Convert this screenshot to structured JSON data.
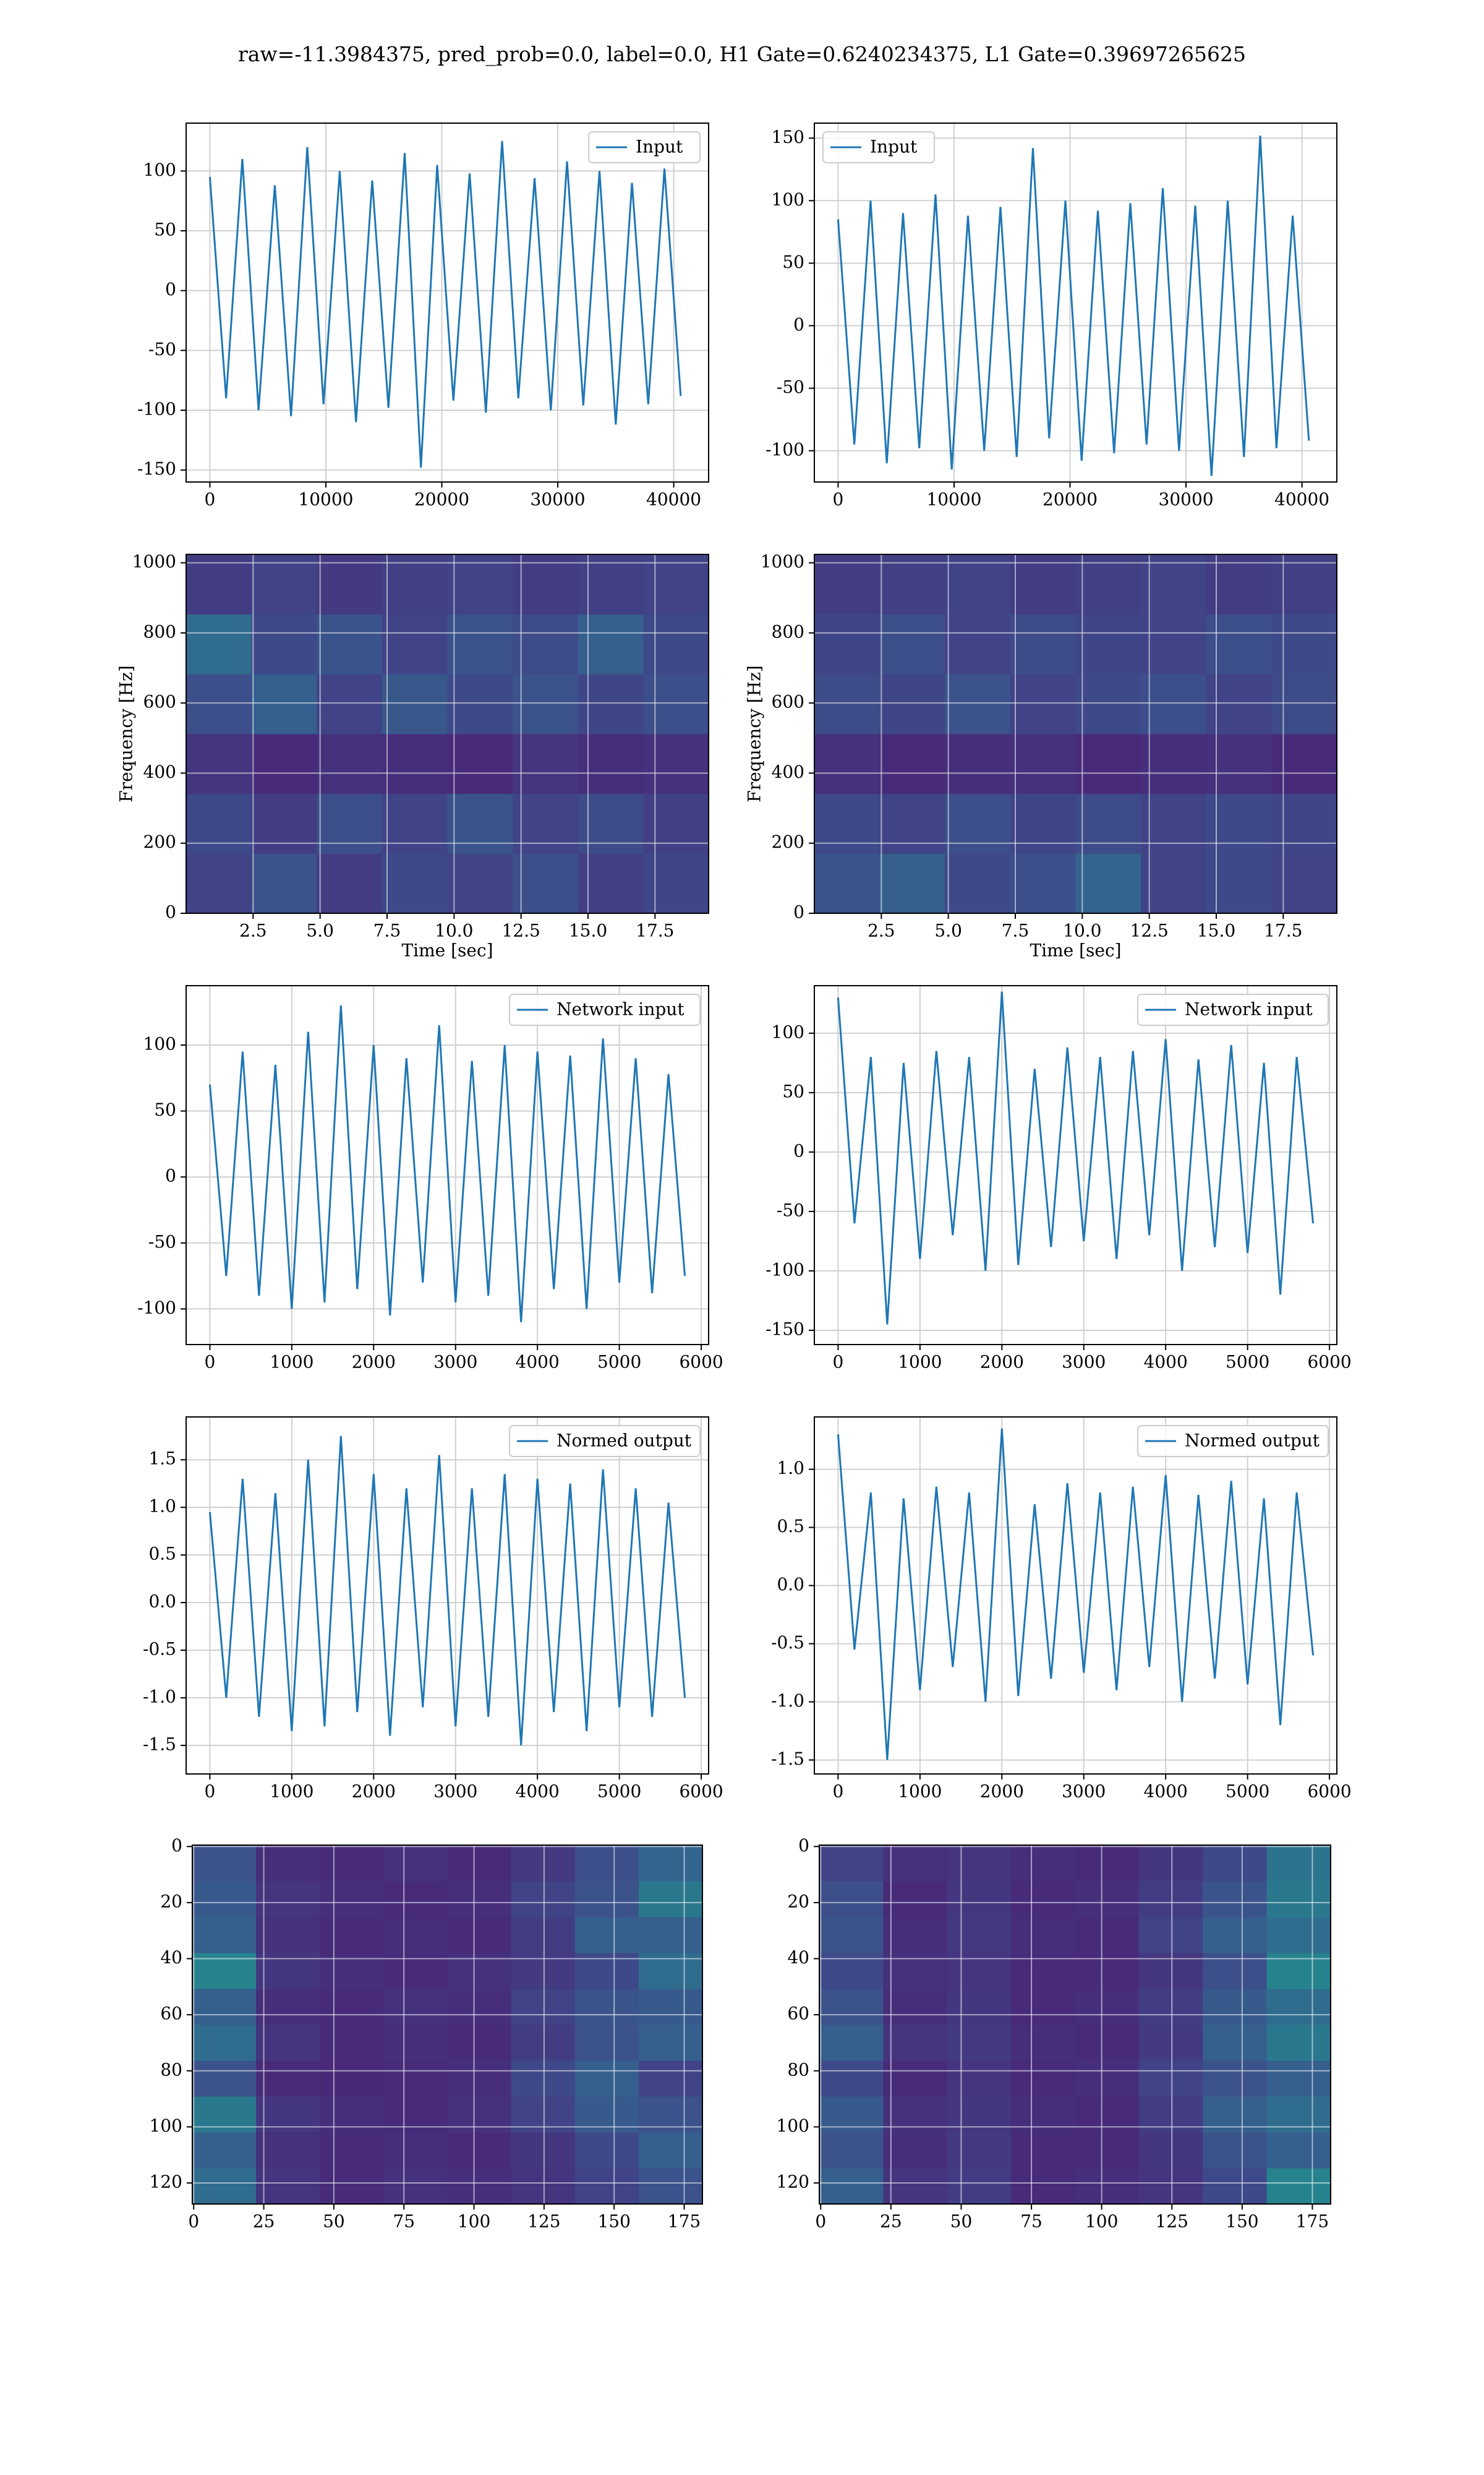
{
  "title": "raw=-11.3984375, pred_prob=0.0, label=0.0, H1 Gate=0.6240234375, L1 Gate=0.39697265625",
  "chart_data": [
    {
      "type": "line",
      "x": [
        0,
        1400,
        2800,
        4200,
        5600,
        7000,
        8400,
        9800,
        11200,
        12600,
        14000,
        15400,
        16800,
        18200,
        19600,
        21000,
        22400,
        23800,
        25200,
        26600,
        28000,
        29400,
        30800,
        32200,
        33600,
        35000,
        36400,
        37800,
        39200,
        40600
      ],
      "series": [
        {
          "name": "Input",
          "color": "#1f77b4",
          "values": [
            95,
            -90,
            110,
            -100,
            88,
            -105,
            120,
            -95,
            100,
            -110,
            92,
            -98,
            115,
            -148,
            105,
            -92,
            98,
            -102,
            125,
            -90,
            94,
            -100,
            108,
            -96,
            100,
            -112,
            90,
            -95,
            102,
            -88
          ]
        }
      ],
      "xlim": [
        -2048,
        43008
      ],
      "ylim": [
        -160,
        140
      ],
      "xticks": [
        0,
        10000,
        20000,
        30000,
        40000
      ],
      "yticks": [
        -150,
        -100,
        -50,
        0,
        50,
        100
      ],
      "grid": true,
      "legend": "upper right"
    },
    {
      "type": "line",
      "x": [
        0,
        1400,
        2800,
        4200,
        5600,
        7000,
        8400,
        9800,
        11200,
        12600,
        14000,
        15400,
        16800,
        18200,
        19600,
        21000,
        22400,
        23800,
        25200,
        26600,
        28000,
        29400,
        30800,
        32200,
        33600,
        35000,
        36400,
        37800,
        39200,
        40600
      ],
      "series": [
        {
          "name": "Input",
          "color": "#1f77b4",
          "values": [
            85,
            -95,
            100,
            -110,
            90,
            -98,
            105,
            -115,
            88,
            -100,
            95,
            -105,
            142,
            -90,
            100,
            -108,
            92,
            -102,
            98,
            -95,
            110,
            -100,
            96,
            -120,
            100,
            -105,
            152,
            -98,
            88,
            -92
          ]
        }
      ],
      "xlim": [
        -2048,
        43008
      ],
      "ylim": [
        -125,
        162
      ],
      "xticks": [
        0,
        10000,
        20000,
        30000,
        40000
      ],
      "yticks": [
        -100,
        -50,
        0,
        50,
        100,
        150
      ],
      "grid": true,
      "legend": "upper left"
    },
    {
      "type": "heatmap",
      "xlabel": "Time [sec]",
      "ylabel": "Frequency [Hz]",
      "xlim": [
        0,
        19.5
      ],
      "ylim": [
        0,
        1024
      ],
      "xticks": [
        2.5,
        {
          "value": 5,
          "label": "5.0"
        },
        7.5,
        {
          "value": 10,
          "label": "10.0"
        },
        12.5,
        {
          "value": 15,
          "label": "15.0"
        },
        17.5
      ],
      "yticks": [
        0,
        200,
        400,
        600,
        800,
        1000
      ],
      "colormap": "viridis",
      "grid": true,
      "z": [
        [
          0.2,
          0.25,
          0.18,
          0.22,
          0.2,
          0.24,
          0.19,
          0.21
        ],
        [
          0.22,
          0.18,
          0.24,
          0.2,
          0.26,
          0.2,
          0.23,
          0.19
        ],
        [
          0.15,
          0.12,
          0.14,
          0.13,
          0.12,
          0.15,
          0.13,
          0.14
        ],
        [
          0.24,
          0.3,
          0.2,
          0.27,
          0.22,
          0.25,
          0.21,
          0.24
        ],
        [
          0.35,
          0.22,
          0.26,
          0.2,
          0.25,
          0.23,
          0.3,
          0.22
        ],
        [
          0.18,
          0.2,
          0.17,
          0.19,
          0.2,
          0.18,
          0.19,
          0.2
        ]
      ]
    },
    {
      "type": "heatmap",
      "xlabel": "Time [sec]",
      "ylabel": "Frequency [Hz]",
      "xlim": [
        0,
        19.5
      ],
      "ylim": [
        0,
        1024
      ],
      "xticks": [
        2.5,
        {
          "value": 5,
          "label": "5.0"
        },
        7.5,
        {
          "value": 10,
          "label": "10.0"
        },
        12.5,
        {
          "value": 15,
          "label": "15.0"
        },
        17.5
      ],
      "yticks": [
        0,
        200,
        400,
        600,
        800,
        1000
      ],
      "colormap": "viridis",
      "grid": true,
      "z": [
        [
          0.26,
          0.3,
          0.22,
          0.24,
          0.32,
          0.2,
          0.22,
          0.2
        ],
        [
          0.22,
          0.2,
          0.24,
          0.21,
          0.23,
          0.2,
          0.22,
          0.21
        ],
        [
          0.14,
          0.12,
          0.13,
          0.14,
          0.12,
          0.13,
          0.14,
          0.12
        ],
        [
          0.23,
          0.21,
          0.25,
          0.2,
          0.22,
          0.24,
          0.2,
          0.23
        ],
        [
          0.21,
          0.24,
          0.2,
          0.23,
          0.21,
          0.2,
          0.24,
          0.22
        ],
        [
          0.18,
          0.19,
          0.2,
          0.18,
          0.19,
          0.2,
          0.18,
          0.19
        ]
      ]
    },
    {
      "type": "line",
      "x": [
        0,
        200,
        400,
        600,
        800,
        1000,
        1200,
        1400,
        1600,
        1800,
        2000,
        2200,
        2400,
        2600,
        2800,
        3000,
        3200,
        3400,
        3600,
        3800,
        4000,
        4200,
        4400,
        4600,
        4800,
        5000,
        5200,
        5400,
        5600,
        5800
      ],
      "series": [
        {
          "name": "Network input",
          "color": "#1f77b4",
          "values": [
            70,
            -75,
            95,
            -90,
            85,
            -100,
            110,
            -95,
            130,
            -85,
            100,
            -105,
            90,
            -80,
            115,
            -95,
            88,
            -90,
            100,
            -110,
            95,
            -85,
            92,
            -100,
            105,
            -80,
            90,
            -88,
            78,
            -75
          ]
        }
      ],
      "xlim": [
        -290,
        6090
      ],
      "ylim": [
        -127,
        145
      ],
      "xticks": [
        0,
        1000,
        2000,
        3000,
        4000,
        5000,
        6000
      ],
      "yticks": [
        -100,
        -50,
        0,
        50,
        100
      ],
      "grid": true,
      "legend": "upper right"
    },
    {
      "type": "line",
      "x": [
        0,
        200,
        400,
        600,
        800,
        1000,
        1200,
        1400,
        1600,
        1800,
        2000,
        2200,
        2400,
        2600,
        2800,
        3000,
        3200,
        3400,
        3600,
        3800,
        4000,
        4200,
        4400,
        4600,
        4800,
        5000,
        5200,
        5400,
        5600,
        5800
      ],
      "series": [
        {
          "name": "Network input",
          "color": "#1f77b4",
          "values": [
            130,
            -60,
            80,
            -145,
            75,
            -90,
            85,
            -70,
            80,
            -100,
            135,
            -95,
            70,
            -80,
            88,
            -75,
            80,
            -90,
            85,
            -70,
            95,
            -100,
            78,
            -80,
            90,
            -85,
            75,
            -120,
            80,
            -60
          ]
        }
      ],
      "xlim": [
        -290,
        6090
      ],
      "ylim": [
        -162,
        140
      ],
      "xticks": [
        0,
        1000,
        2000,
        3000,
        4000,
        5000,
        6000
      ],
      "yticks": [
        -150,
        -100,
        -50,
        0,
        50,
        100
      ],
      "grid": true,
      "legend": "upper right"
    },
    {
      "type": "line",
      "x": [
        0,
        200,
        400,
        600,
        800,
        1000,
        1200,
        1400,
        1600,
        1800,
        2000,
        2200,
        2400,
        2600,
        2800,
        3000,
        3200,
        3400,
        3600,
        3800,
        4000,
        4200,
        4400,
        4600,
        4800,
        5000,
        5200,
        5400,
        5600,
        5800
      ],
      "series": [
        {
          "name": "Normed output",
          "color": "#1f77b4",
          "values": [
            0.95,
            -1.0,
            1.3,
            -1.2,
            1.15,
            -1.35,
            1.5,
            -1.3,
            1.75,
            -1.15,
            1.35,
            -1.4,
            1.2,
            -1.1,
            1.55,
            -1.3,
            1.2,
            -1.2,
            1.35,
            -1.5,
            1.3,
            -1.15,
            1.25,
            -1.35,
            1.4,
            -1.1,
            1.2,
            -1.2,
            1.05,
            -1.0
          ]
        }
      ],
      "xlim": [
        -290,
        6090
      ],
      "ylim": [
        -1.8,
        1.95
      ],
      "xticks": [
        0,
        1000,
        2000,
        3000,
        4000,
        5000,
        6000
      ],
      "yticks": [
        -1.5,
        {
          "value": -1,
          "label": "-1.0"
        },
        -0.5,
        {
          "value": 0,
          "label": "0.0"
        },
        0.5,
        {
          "value": 1,
          "label": "1.0"
        },
        1.5
      ],
      "grid": true,
      "legend": "upper right"
    },
    {
      "type": "line",
      "x": [
        0,
        200,
        400,
        600,
        800,
        1000,
        1200,
        1400,
        1600,
        1800,
        2000,
        2200,
        2400,
        2600,
        2800,
        3000,
        3200,
        3400,
        3600,
        3800,
        4000,
        4200,
        4400,
        4600,
        4800,
        5000,
        5200,
        5400,
        5600,
        5800
      ],
      "series": [
        {
          "name": "Normed output",
          "color": "#1f77b4",
          "values": [
            1.3,
            -0.55,
            0.8,
            -1.5,
            0.75,
            -0.9,
            0.85,
            -0.7,
            0.8,
            -1.0,
            1.35,
            -0.95,
            0.7,
            -0.8,
            0.88,
            -0.75,
            0.8,
            -0.9,
            0.85,
            -0.7,
            0.95,
            -1.0,
            0.78,
            -0.8,
            0.9,
            -0.85,
            0.75,
            -1.2,
            0.8,
            -0.6
          ]
        }
      ],
      "xlim": [
        -290,
        6090
      ],
      "ylim": [
        -1.62,
        1.45
      ],
      "xticks": [
        0,
        1000,
        2000,
        3000,
        4000,
        5000,
        6000
      ],
      "yticks": [
        -1.5,
        {
          "value": -1,
          "label": "-1.0"
        },
        -0.5,
        {
          "value": 0,
          "label": "0.0"
        },
        0.5,
        {
          "value": 1,
          "label": "1.0"
        }
      ],
      "grid": true,
      "legend": "upper right"
    },
    {
      "type": "heatmap",
      "xlim": [
        -0.5,
        181.5
      ],
      "ylim": [
        127.5,
        -0.5
      ],
      "xticks": [
        0,
        25,
        50,
        75,
        100,
        125,
        150,
        175
      ],
      "yticks": [
        0,
        20,
        40,
        60,
        80,
        100,
        120
      ],
      "colormap": "viridis",
      "grid": true,
      "z": [
        [
          0.35,
          0.15,
          0.12,
          0.14,
          0.13,
          0.15,
          0.2,
          0.25
        ],
        [
          0.3,
          0.14,
          0.12,
          0.13,
          0.12,
          0.16,
          0.22,
          0.3
        ],
        [
          0.4,
          0.16,
          0.13,
          0.12,
          0.14,
          0.2,
          0.28,
          0.25
        ],
        [
          0.25,
          0.12,
          0.11,
          0.12,
          0.13,
          0.22,
          0.3,
          0.2
        ],
        [
          0.35,
          0.15,
          0.12,
          0.13,
          0.12,
          0.18,
          0.25,
          0.3
        ],
        [
          0.3,
          0.13,
          0.12,
          0.14,
          0.13,
          0.2,
          0.26,
          0.28
        ],
        [
          0.45,
          0.16,
          0.13,
          0.12,
          0.14,
          0.17,
          0.22,
          0.35
        ],
        [
          0.3,
          0.14,
          0.12,
          0.13,
          0.12,
          0.18,
          0.3,
          0.3
        ],
        [
          0.28,
          0.15,
          0.13,
          0.12,
          0.13,
          0.2,
          0.25,
          0.4
        ],
        [
          0.25,
          0.13,
          0.12,
          0.14,
          0.12,
          0.17,
          0.24,
          0.32
        ]
      ]
    },
    {
      "type": "heatmap",
      "xlim": [
        -0.5,
        181.5
      ],
      "ylim": [
        127.5,
        -0.5
      ],
      "xticks": [
        0,
        25,
        50,
        75,
        100,
        125,
        150,
        175
      ],
      "yticks": [
        0,
        20,
        40,
        60,
        80,
        100,
        120
      ],
      "colormap": "viridis",
      "grid": true,
      "z": [
        [
          0.3,
          0.15,
          0.18,
          0.12,
          0.13,
          0.15,
          0.22,
          0.45
        ],
        [
          0.25,
          0.13,
          0.17,
          0.12,
          0.12,
          0.16,
          0.26,
          0.3
        ],
        [
          0.28,
          0.14,
          0.16,
          0.13,
          0.12,
          0.18,
          0.3,
          0.35
        ],
        [
          0.22,
          0.12,
          0.15,
          0.12,
          0.13,
          0.2,
          0.25,
          0.3
        ],
        [
          0.3,
          0.15,
          0.17,
          0.13,
          0.12,
          0.17,
          0.3,
          0.4
        ],
        [
          0.25,
          0.13,
          0.16,
          0.12,
          0.13,
          0.18,
          0.28,
          0.35
        ],
        [
          0.22,
          0.14,
          0.15,
          0.12,
          0.12,
          0.16,
          0.24,
          0.45
        ],
        [
          0.26,
          0.13,
          0.17,
          0.13,
          0.12,
          0.2,
          0.3,
          0.35
        ],
        [
          0.24,
          0.12,
          0.16,
          0.12,
          0.13,
          0.18,
          0.26,
          0.4
        ],
        [
          0.2,
          0.14,
          0.15,
          0.13,
          0.12,
          0.16,
          0.22,
          0.38
        ]
      ]
    }
  ]
}
